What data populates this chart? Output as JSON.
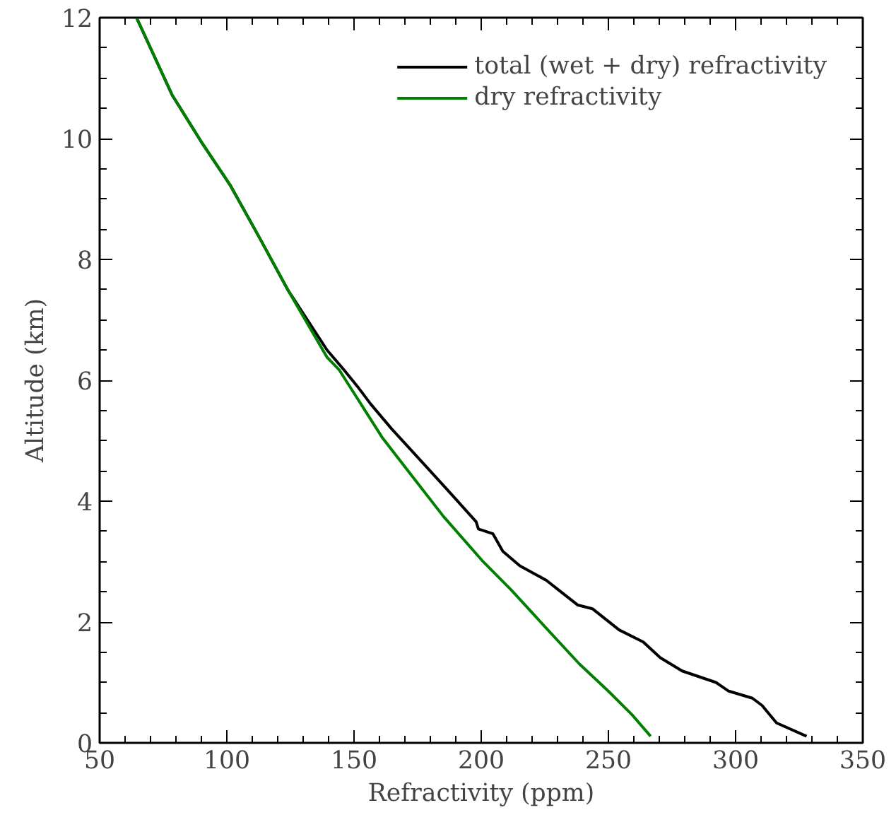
{
  "chart_data": {
    "type": "line",
    "xlabel": "Refractivity (ppm)",
    "ylabel": "Altitude (km)",
    "xlim": [
      50,
      350
    ],
    "xticks": [
      50,
      100,
      150,
      200,
      250,
      300,
      350
    ],
    "ylim": [
      0,
      12
    ],
    "yticks": [
      0,
      2,
      4,
      6,
      8,
      10,
      12
    ],
    "legend": "top right",
    "grid": false,
    "marker": "none",
    "line_style": "solid",
    "series": [
      {
        "name": "total (wet + dry) refractivity",
        "color": "#000000",
        "x": [
          64.5,
          78.5,
          89.9,
          101.3,
          112.7,
          124.2,
          139.4,
          146.1,
          151.5,
          156.5,
          164.7,
          178.0,
          187.5,
          198.0,
          198.9,
          204.6,
          208.5,
          215.2,
          225.6,
          230.4,
          238.0,
          243.7,
          254.2,
          263.7,
          270.4,
          279.0,
          292.3,
          297.1,
          306.6,
          310.4,
          316.1,
          327.9
        ],
        "values": [
          12,
          10.72,
          9.95,
          9.23,
          8.37,
          7.48,
          6.5,
          6.17,
          5.89,
          5.61,
          5.2,
          4.59,
          4.15,
          3.66,
          3.54,
          3.46,
          3.17,
          2.93,
          2.69,
          2.53,
          2.28,
          2.22,
          1.87,
          1.67,
          1.41,
          1.19,
          1.0,
          0.86,
          0.74,
          0.62,
          0.33,
          0.11
        ]
      },
      {
        "name": "dry refractivity",
        "color": "#008000",
        "x": [
          64.5,
          78.5,
          89.9,
          101.3,
          112.7,
          124.2,
          139.4,
          144.2,
          161.3,
          171.8,
          185.1,
          200.3,
          211.8,
          225.1,
          238.5,
          249.9,
          259.4,
          266.6
        ],
        "values": [
          12,
          10.72,
          9.95,
          9.23,
          8.37,
          7.48,
          6.38,
          6.17,
          5.04,
          4.47,
          3.75,
          3.02,
          2.53,
          1.92,
          1.31,
          0.86,
          0.46,
          0.11
        ]
      }
    ]
  }
}
